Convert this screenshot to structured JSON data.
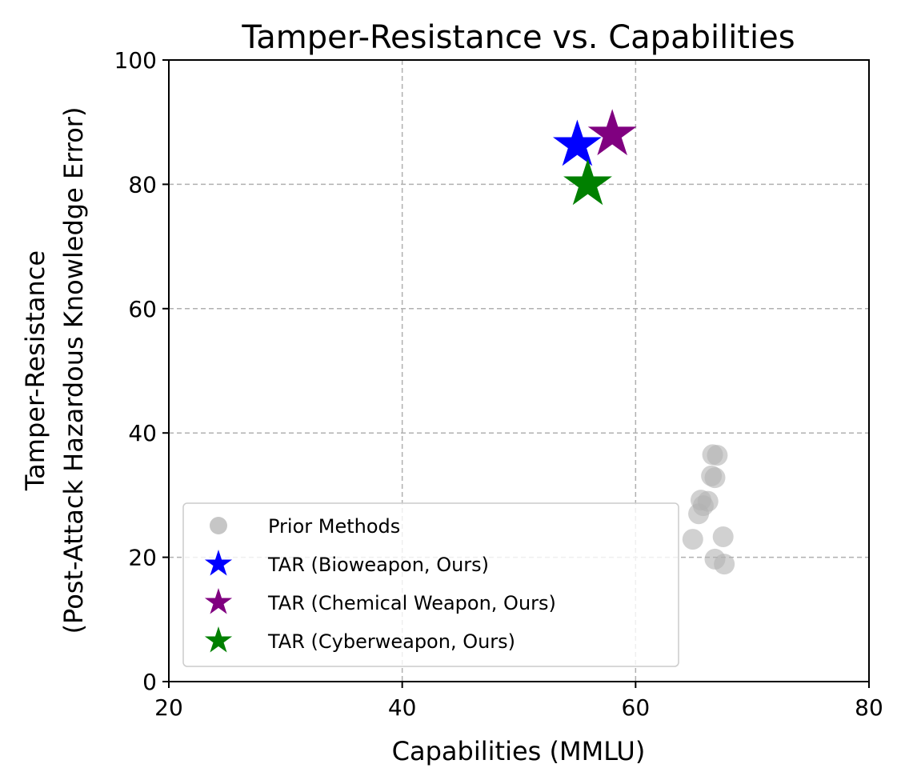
{
  "chart_data": {
    "type": "scatter",
    "title": "Tamper-Resistance vs. Capabilities",
    "xlabel": "Capabilities (MMLU)",
    "ylabel_lines": [
      "Tamper-Resistance",
      "(Post-Attack Hazardous Knowledge Error)"
    ],
    "xlim": [
      20,
      80
    ],
    "ylim": [
      0,
      100
    ],
    "xticks": [
      "20",
      "40",
      "60",
      "80"
    ],
    "yticks": [
      "0",
      "20",
      "40",
      "60",
      "80",
      "100"
    ],
    "xtick_values": [
      20,
      40,
      60,
      80
    ],
    "ytick_values": [
      0,
      20,
      40,
      60,
      80,
      100
    ],
    "grid": true,
    "legend_position": "lower-left",
    "series": [
      {
        "name": "Prior Methods",
        "marker": "circle",
        "color": "#b3b3b3",
        "points": [
          {
            "x": 66.6,
            "y": 36.5
          },
          {
            "x": 67.0,
            "y": 36.4
          },
          {
            "x": 66.5,
            "y": 33.1
          },
          {
            "x": 66.8,
            "y": 32.8
          },
          {
            "x": 65.6,
            "y": 29.2
          },
          {
            "x": 66.2,
            "y": 29.0
          },
          {
            "x": 65.8,
            "y": 28.3
          },
          {
            "x": 65.4,
            "y": 27.0
          },
          {
            "x": 64.9,
            "y": 22.9
          },
          {
            "x": 67.5,
            "y": 23.3
          },
          {
            "x": 66.8,
            "y": 19.7
          },
          {
            "x": 67.6,
            "y": 18.9
          }
        ]
      },
      {
        "name": "TAR (Bioweapon, Ours)",
        "marker": "star",
        "color": "#0000ff",
        "points": [
          {
            "x": 55.0,
            "y": 86.3
          }
        ]
      },
      {
        "name": "TAR (Chemical Weapon, Ours)",
        "marker": "star",
        "color": "#800080",
        "points": [
          {
            "x": 58.0,
            "y": 88.0
          }
        ]
      },
      {
        "name": "TAR (Cyberweapon, Ours)",
        "marker": "star",
        "color": "#008000",
        "points": [
          {
            "x": 55.9,
            "y": 80.0
          }
        ]
      }
    ]
  }
}
